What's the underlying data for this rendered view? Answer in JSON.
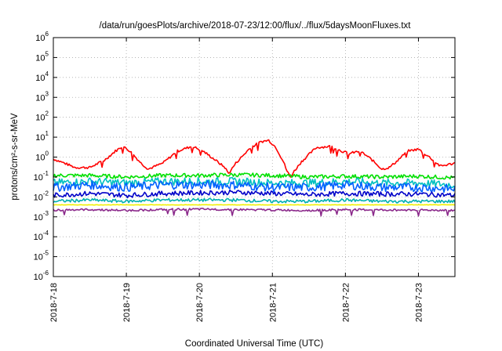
{
  "chart_data": {
    "type": "line",
    "title": "/data/run/goesPlots/archive/2018-07-23/12:00/flux/../flux/5daysMoonFluxes.txt",
    "xlabel": "Coordinated Universal Time (UTC)",
    "ylabel": "protons/cm²-s-sr-MeV",
    "y_scale": "log",
    "ylim": [
      1e-06,
      1000000.0
    ],
    "xlim": [
      "2018-07-18",
      "2018-07-23 12:00"
    ],
    "xlim_days": [
      0,
      5.5
    ],
    "x_ticks": [
      {
        "day": 0,
        "label": "2018-7-18"
      },
      {
        "day": 1,
        "label": "2018-7-19"
      },
      {
        "day": 2,
        "label": "2018-7-20"
      },
      {
        "day": 3,
        "label": "2018-7-21"
      },
      {
        "day": 4,
        "label": "2018-7-22"
      },
      {
        "day": 5,
        "label": "2018-7-23"
      }
    ],
    "y_ticks": [
      {
        "exp": -6,
        "base": "10",
        "sup": "-6"
      },
      {
        "exp": -5,
        "base": "10",
        "sup": "-5"
      },
      {
        "exp": -4,
        "base": "10",
        "sup": "-4"
      },
      {
        "exp": -3,
        "base": "10",
        "sup": "-3"
      },
      {
        "exp": -2,
        "base": "10",
        "sup": "-2"
      },
      {
        "exp": -1,
        "base": "10",
        "sup": "-1"
      },
      {
        "exp": 0,
        "base": "10",
        "sup": "0"
      },
      {
        "exp": 1,
        "base": "10",
        "sup": "1"
      },
      {
        "exp": 2,
        "base": "10",
        "sup": "2"
      },
      {
        "exp": 3,
        "base": "10",
        "sup": "3"
      },
      {
        "exp": 4,
        "base": "10",
        "sup": "4"
      },
      {
        "exp": 5,
        "base": "10",
        "sup": "5"
      },
      {
        "exp": 6,
        "base": "10",
        "sup": "6"
      }
    ],
    "grid": true,
    "legend": "none",
    "series": [
      {
        "color": "#ff0000",
        "x": [
          0,
          0.15,
          0.3,
          0.5,
          0.7,
          0.85,
          0.95,
          1.05,
          1.2,
          1.3,
          1.5,
          1.7,
          1.9,
          2.05,
          2.2,
          2.35,
          2.4,
          2.5,
          2.7,
          2.85,
          2.95,
          3.05,
          3.15,
          3.2,
          3.25,
          3.3,
          3.4,
          3.6,
          3.8,
          3.95,
          4.05,
          4.2,
          4.35,
          4.5,
          4.6,
          4.7,
          4.85,
          5,
          5.15,
          5.3,
          5.5
        ],
        "y": [
          0.8,
          0.5,
          0.3,
          0.3,
          0.7,
          2,
          3.5,
          2,
          0.5,
          0.25,
          0.5,
          2,
          3.5,
          2,
          0.8,
          0.3,
          0.15,
          0.5,
          3,
          6,
          7,
          3,
          0.6,
          0.2,
          0.1,
          0.2,
          0.6,
          3,
          3.5,
          2,
          1.5,
          2,
          0.8,
          0.25,
          0.3,
          0.6,
          2,
          2.5,
          1,
          0.35,
          0.5
        ]
      },
      {
        "color": "#00e000",
        "x": [
          0,
          0.5,
          1,
          1.5,
          2,
          2.5,
          3,
          3.5,
          4,
          4.5,
          5,
          5.5
        ],
        "y": [
          0.12,
          0.12,
          0.1,
          0.12,
          0.12,
          0.13,
          0.12,
          0.1,
          0.11,
          0.1,
          0.11,
          0.09
        ]
      },
      {
        "color": "#00c0c0",
        "x": [
          0,
          0.5,
          1,
          1.5,
          2,
          2.5,
          3,
          3.5,
          4,
          4.5,
          5,
          5.5
        ],
        "y": [
          0.05,
          0.06,
          0.05,
          0.06,
          0.06,
          0.06,
          0.05,
          0.05,
          0.06,
          0.05,
          0.05,
          0.04
        ]
      },
      {
        "color": "#0060ff",
        "x": [
          0,
          0.5,
          1,
          1.5,
          2,
          2.5,
          3,
          3.5,
          4,
          4.5,
          5,
          5.5
        ],
        "y": [
          0.03,
          0.04,
          0.03,
          0.04,
          0.04,
          0.04,
          0.03,
          0.03,
          0.04,
          0.03,
          0.03,
          0.025
        ]
      },
      {
        "color": "#0000c8",
        "x": [
          0,
          0.5,
          1,
          1.5,
          2,
          2.5,
          3,
          3.5,
          4,
          4.5,
          5,
          5.5
        ],
        "y": [
          0.012,
          0.015,
          0.012,
          0.015,
          0.016,
          0.017,
          0.015,
          0.013,
          0.015,
          0.014,
          0.014,
          0.012
        ]
      },
      {
        "color": "#00b0b0",
        "x": [
          0,
          0.5,
          1,
          1.5,
          2,
          2.5,
          3,
          3.5,
          4,
          4.5,
          5,
          5.5
        ],
        "y": [
          0.006,
          0.007,
          0.006,
          0.007,
          0.007,
          0.007,
          0.006,
          0.006,
          0.007,
          0.006,
          0.006,
          0.006
        ]
      },
      {
        "color": "#f0f000",
        "x": [
          0,
          0.5,
          1,
          1.5,
          2,
          2.5,
          3,
          3.5,
          4,
          4.5,
          5,
          5.5
        ],
        "y": [
          0.004,
          0.004,
          0.004,
          0.004,
          0.004,
          0.004,
          0.004,
          0.004,
          0.004,
          0.004,
          0.004,
          0.004
        ]
      },
      {
        "color": "#8b2a8b",
        "x": [
          0,
          0.5,
          1,
          1.5,
          2,
          2.5,
          3,
          3.5,
          4,
          4.5,
          5,
          5.5
        ],
        "y": [
          0.0022,
          0.0023,
          0.0021,
          0.0023,
          0.0024,
          0.0023,
          0.0022,
          0.0021,
          0.0023,
          0.0022,
          0.0022,
          0.0021
        ]
      }
    ]
  }
}
